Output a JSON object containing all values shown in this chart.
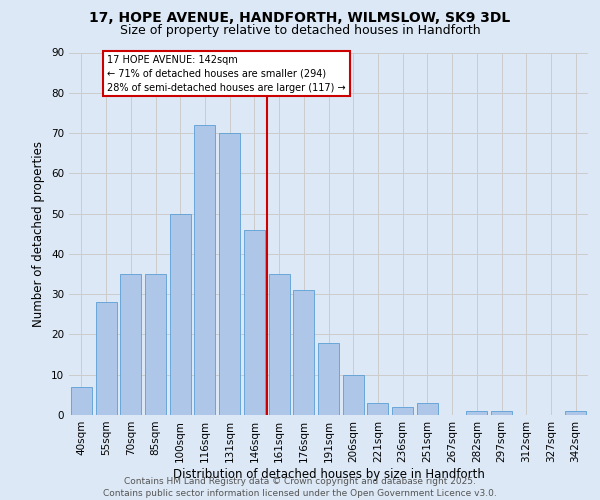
{
  "title": "17, HOPE AVENUE, HANDFORTH, WILMSLOW, SK9 3DL",
  "subtitle": "Size of property relative to detached houses in Handforth",
  "xlabel": "Distribution of detached houses by size in Handforth",
  "ylabel": "Number of detached properties",
  "categories": [
    "40sqm",
    "55sqm",
    "70sqm",
    "85sqm",
    "100sqm",
    "116sqm",
    "131sqm",
    "146sqm",
    "161sqm",
    "176sqm",
    "191sqm",
    "206sqm",
    "221sqm",
    "236sqm",
    "251sqm",
    "267sqm",
    "282sqm",
    "297sqm",
    "312sqm",
    "327sqm",
    "342sqm"
  ],
  "values": [
    7,
    28,
    35,
    35,
    50,
    72,
    70,
    46,
    35,
    31,
    18,
    10,
    3,
    2,
    3,
    0,
    1,
    1,
    0,
    0,
    1
  ],
  "bar_color": "#aec6e8",
  "bar_edge_color": "#5a9fd4",
  "vline_index": 7,
  "vline_label": "17 HOPE AVENUE: 142sqm",
  "annotation_line1": "← 71% of detached houses are smaller (294)",
  "annotation_line2": "28% of semi-detached houses are larger (117) →",
  "annotation_box_color": "#ffffff",
  "annotation_box_edge_color": "#cc0000",
  "vline_color": "#cc0000",
  "ylim": [
    0,
    90
  ],
  "yticks": [
    0,
    10,
    20,
    30,
    40,
    50,
    60,
    70,
    80,
    90
  ],
  "grid_color": "#cccccc",
  "bg_color": "#dce8f5",
  "footer_line1": "Contains HM Land Registry data © Crown copyright and database right 2025.",
  "footer_line2": "Contains public sector information licensed under the Open Government Licence v3.0.",
  "title_fontsize": 10,
  "subtitle_fontsize": 9,
  "axis_label_fontsize": 8.5,
  "tick_fontsize": 7.5,
  "footer_fontsize": 6.5
}
